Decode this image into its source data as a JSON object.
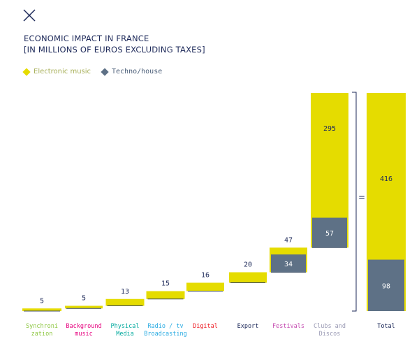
{
  "header": {
    "title_line1": "ECONOMIC IMPACT IN FRANCE",
    "title_line2": "[IN MILLIONS OF EUROS EXCLUDING TAXES]"
  },
  "legend": {
    "electronic_label": "Electronic music",
    "techno_label": "Techno/house"
  },
  "colors": {
    "electronic": "#e5dc00",
    "techno": "#5e7186",
    "text_dark": "#1e2a5a"
  },
  "equals_sign": "=",
  "chart_data": {
    "type": "bar",
    "title": "ECONOMIC IMPACT IN FRANCE\n[IN MILLIONS OF EUROS EXCLUDING TAXES]",
    "categories": [
      "Synchronization",
      "Background music",
      "Physical Media",
      "Radio / tv Broadcasting",
      "Digital",
      "Export",
      "Festivals",
      "Clubs and Discos",
      "Total"
    ],
    "category_labels": [
      [
        "Synchroni",
        "zation"
      ],
      [
        "Background",
        "music"
      ],
      [
        "Physical",
        "Media"
      ],
      [
        "Radio / tv",
        "Broadcasting"
      ],
      [
        "Digital"
      ],
      [
        "Export"
      ],
      [
        "Festivals"
      ],
      [
        "Clubs and",
        "Discos"
      ],
      [
        "Total"
      ]
    ],
    "category_colors": [
      "#8cc63f",
      "#e6007e",
      "#00a99d",
      "#29abe2",
      "#ed1c24",
      "#1e2a5a",
      "#c44ab0",
      "#9a9ab4",
      "#1e2a5a"
    ],
    "series": [
      {
        "name": "Electronic music",
        "values": [
          5,
          5,
          13,
          15,
          16,
          20,
          47,
          295,
          416
        ]
      },
      {
        "name": "Techno/house",
        "values": [
          null,
          null,
          null,
          null,
          null,
          null,
          34,
          57,
          98
        ]
      }
    ],
    "value_labels": [
      "5",
      "5",
      "13",
      "15",
      "16",
      "20",
      "47",
      "295",
      "416"
    ],
    "techno_labels": [
      "34",
      "57",
      "98"
    ],
    "layout": "waterfall"
  }
}
